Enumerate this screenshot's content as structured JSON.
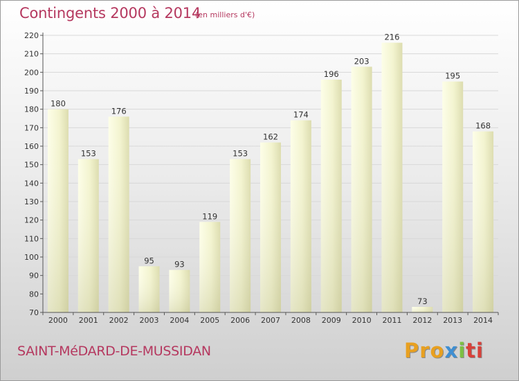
{
  "header": {
    "title": "Contingents 2000 à 2014",
    "subtitle": "(en milliers d'€)"
  },
  "footer": {
    "place": "SAINT-MéDARD-DE-MUSSIDAN",
    "brand_parts": [
      "Pro",
      "x",
      "i",
      "ti"
    ]
  },
  "colors": {
    "title": "#b5385f",
    "bar_light": "#fcfde4",
    "bar_dark": "#d9d9ac",
    "axis": "#555555",
    "grid": "#d8d8d8"
  },
  "chart_data": {
    "type": "bar",
    "title": "Contingents 2000 à 2014",
    "subtitle": "(en milliers d'€)",
    "xlabel": "",
    "ylabel": "",
    "categories": [
      "2000",
      "2001",
      "2002",
      "2003",
      "2004",
      "2005",
      "2006",
      "2007",
      "2008",
      "2009",
      "2010",
      "2011",
      "2012",
      "2013",
      "2014"
    ],
    "values": [
      180,
      153,
      176,
      95,
      93,
      119,
      153,
      162,
      174,
      196,
      203,
      216,
      73,
      195,
      168
    ],
    "ylim": [
      70,
      220
    ],
    "yticks": [
      70,
      80,
      90,
      100,
      110,
      120,
      130,
      140,
      150,
      160,
      170,
      180,
      190,
      200,
      210,
      220
    ],
    "grid": true,
    "legend": "none"
  }
}
